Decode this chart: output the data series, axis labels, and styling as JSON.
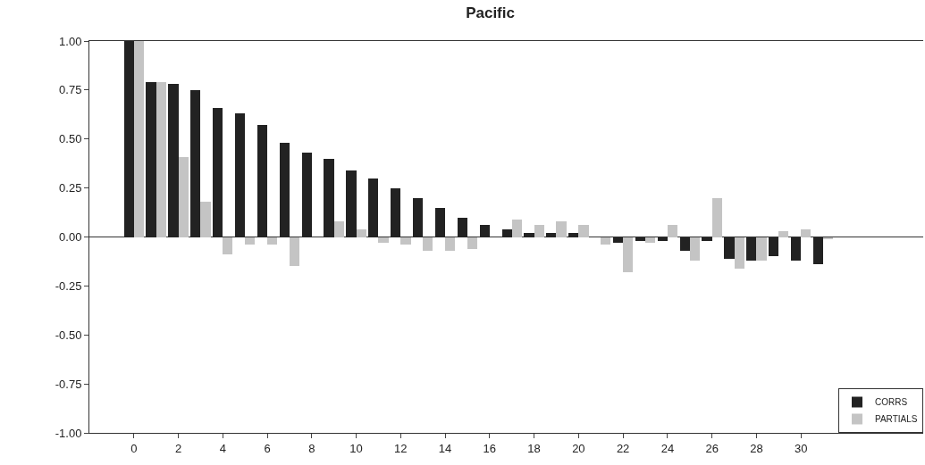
{
  "chart_data": {
    "type": "bar",
    "title": "Pacific",
    "x": [
      0,
      1,
      2,
      3,
      4,
      5,
      6,
      7,
      8,
      9,
      10,
      11,
      12,
      13,
      14,
      15,
      16,
      17,
      18,
      19,
      20,
      21,
      22,
      23,
      24,
      25,
      26,
      27,
      28,
      29,
      30,
      31
    ],
    "series": [
      {
        "name": "CORRS",
        "color": "#222222",
        "values": [
          1.0,
          0.79,
          0.78,
          0.75,
          0.66,
          0.63,
          0.57,
          0.48,
          0.43,
          0.4,
          0.34,
          0.3,
          0.25,
          0.2,
          0.15,
          0.1,
          0.06,
          0.04,
          0.02,
          0.02,
          0.02,
          0.0,
          -0.03,
          -0.02,
          -0.02,
          -0.07,
          -0.02,
          -0.11,
          -0.12,
          -0.1,
          -0.12,
          -0.14
        ]
      },
      {
        "name": "PARTIALS",
        "color": "#c4c4c4",
        "values": [
          1.0,
          0.79,
          0.41,
          0.18,
          -0.09,
          -0.04,
          -0.04,
          -0.15,
          0.0,
          0.08,
          0.04,
          -0.03,
          -0.04,
          -0.07,
          -0.07,
          -0.06,
          0.0,
          0.09,
          0.06,
          0.08,
          0.06,
          -0.04,
          -0.18,
          -0.03,
          0.06,
          -0.12,
          0.2,
          -0.16,
          -0.12,
          0.03,
          0.04,
          -0.01
        ]
      }
    ],
    "xlim": [
      -2,
      35.5
    ],
    "xticks": [
      0,
      2,
      4,
      6,
      8,
      10,
      12,
      14,
      16,
      18,
      20,
      22,
      24,
      26,
      28,
      30
    ],
    "ylim": [
      -1.0,
      1.0
    ],
    "yticks": [
      {
        "value": 1.0,
        "label": "1.00"
      },
      {
        "value": 0.75,
        "label": "0.75"
      },
      {
        "value": 0.5,
        "label": "0.50"
      },
      {
        "value": 0.25,
        "label": "0.25"
      },
      {
        "value": 0.0,
        "label": "0.00"
      },
      {
        "value": -0.25,
        "label": "-0.25"
      },
      {
        "value": -0.5,
        "label": "-0.50"
      },
      {
        "value": -0.75,
        "label": "-0.75"
      },
      {
        "value": -1.0,
        "label": "-1.00"
      }
    ],
    "ref_lines": [
      {
        "axis": "y",
        "value": 0.0,
        "color": "#333333"
      }
    ],
    "legend": "bottom right"
  }
}
